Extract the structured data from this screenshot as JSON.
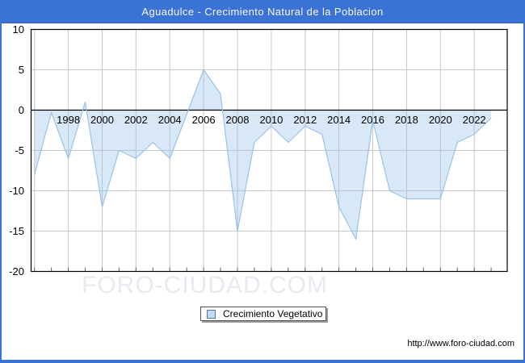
{
  "title_bar": {
    "text": "Aguadulce - Crecimiento Natural de la Poblacion"
  },
  "chart_data": {
    "type": "area",
    "title": "Aguadulce - Crecimiento Natural de la Poblacion",
    "series_name": "Crecimiento Vegetativo",
    "x": [
      1996,
      1997,
      1998,
      1999,
      2000,
      2001,
      2002,
      2003,
      2004,
      2005,
      2006,
      2007,
      2008,
      2009,
      2010,
      2011,
      2012,
      2013,
      2014,
      2015,
      2016,
      2017,
      2018,
      2019,
      2020,
      2021,
      2022,
      2023
    ],
    "values": [
      -8,
      -0.3,
      -6,
      1,
      -12,
      -5,
      -6,
      -4,
      -6,
      -0.5,
      5,
      2,
      -15,
      -4,
      -2,
      -4,
      -2,
      -3,
      -12,
      -16,
      -1.3,
      -10,
      -11,
      -11,
      -11,
      -4,
      -3,
      -1
    ],
    "xlabel": "",
    "ylabel": "",
    "ylim": [
      -20,
      10
    ],
    "yticks": [
      10,
      5,
      0,
      -5,
      -10,
      -15,
      -20
    ],
    "xticks": [
      1998,
      2000,
      2002,
      2004,
      2006,
      2008,
      2010,
      2012,
      2014,
      2016,
      2018,
      2020,
      2022
    ],
    "grid": true,
    "baseline": 0,
    "legend_position": "bottom-center",
    "colors": {
      "line": "#9cc1e8",
      "fill": "rgba(147,190,231,0.36)",
      "grid": "#c8c8c8",
      "zero_line": "#000000",
      "plot_border": "#000000",
      "tick": "#666666"
    }
  },
  "legend": {
    "label": "Crecimiento Vegetativo",
    "marker_fill": "#c3daf3",
    "marker_border": "#4f7aa6"
  },
  "watermark": {
    "text": "FORO-CIUDAD.COM",
    "color": "#e9e9f1"
  },
  "footer": {
    "url": "http://www.foro-ciudad.com"
  },
  "ui_colors": {
    "accent_blue": "#3a72d6",
    "title_text": "#f8f8f8"
  }
}
